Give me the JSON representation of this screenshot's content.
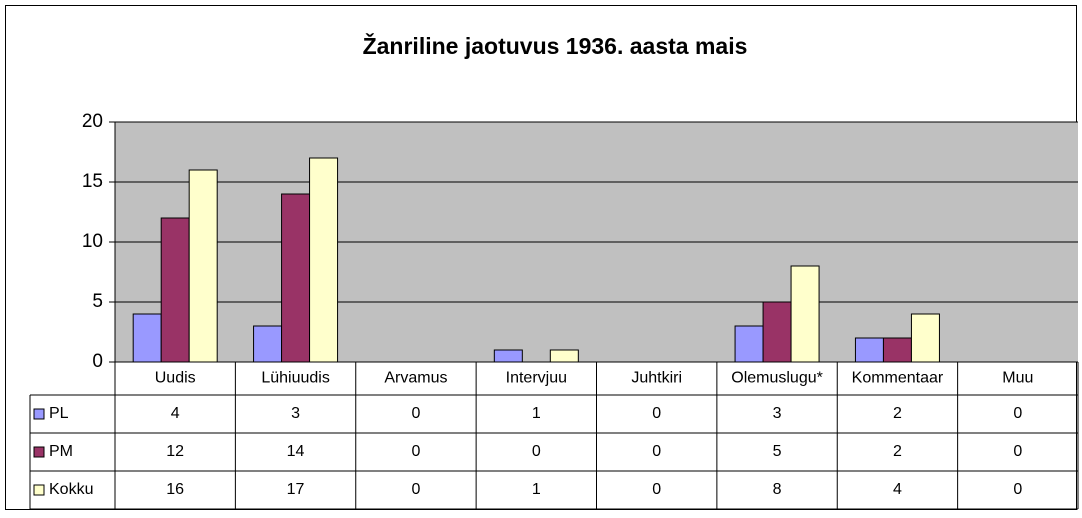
{
  "chart_data": {
    "type": "bar",
    "title": "Žanriline jaotuvus 1936. aasta mais",
    "categories": [
      "Uudis",
      "Lühiuudis",
      "Arvamus",
      "Intervjuu",
      "Juhtkiri",
      "Olemuslugu*",
      "Kommentaar",
      "Muu"
    ],
    "series": [
      {
        "name": "PL",
        "color": "#9999ff",
        "values": [
          4,
          3,
          0,
          1,
          0,
          3,
          2,
          0
        ]
      },
      {
        "name": "PM",
        "color": "#993366",
        "values": [
          12,
          14,
          0,
          0,
          0,
          5,
          2,
          0
        ]
      },
      {
        "name": "Kokku",
        "color": "#ffffcc",
        "values": [
          16,
          17,
          0,
          1,
          0,
          8,
          4,
          0
        ]
      }
    ],
    "ylim": [
      0,
      20
    ],
    "yticks": [
      0,
      5,
      10,
      15,
      20
    ],
    "grid": true,
    "data_table": true
  }
}
